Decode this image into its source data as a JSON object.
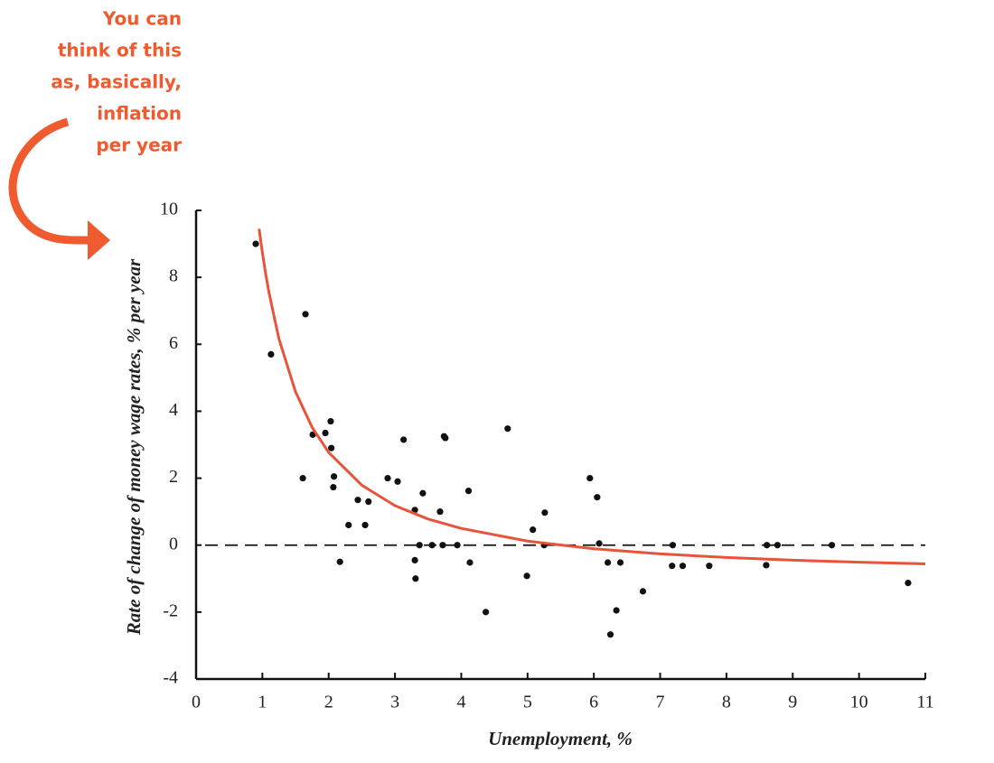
{
  "chart_data": {
    "type": "scatter",
    "annotation": [
      "You can",
      "think of this",
      "as, basically,",
      "inflation",
      "per year"
    ],
    "annotation_color": "#ef5a2f",
    "xlabel": "Unemployment, %",
    "ylabel": "Rate of change of money wage rates, % per year",
    "xlim": [
      0,
      11
    ],
    "ylim": [
      -4,
      10
    ],
    "xticks": [
      0,
      1,
      2,
      3,
      4,
      5,
      6,
      7,
      8,
      9,
      10,
      11
    ],
    "yticks": [
      -4,
      -2,
      0,
      2,
      4,
      6,
      8,
      10
    ],
    "hline": 0,
    "color": "#111111",
    "x": [
      0.9,
      1.65,
      1.13,
      1.76,
      1.61,
      1.95,
      2.03,
      2.04,
      2.08,
      2.07,
      2.17,
      2.3,
      2.44,
      2.55,
      2.6,
      2.89,
      3.04,
      3.13,
      3.3,
      3.3,
      3.31,
      3.37,
      3.42,
      3.56,
      3.68,
      3.72,
      3.74,
      3.76,
      3.94,
      4.11,
      4.13,
      4.37,
      4.7,
      4.99,
      5.08,
      5.25,
      5.26,
      5.94,
      6.05,
      6.08,
      6.21,
      6.25,
      6.34,
      6.4,
      6.74,
      7.19,
      7.18,
      7.34,
      7.74,
      8.61,
      8.6,
      8.77,
      9.59,
      10.74
    ],
    "values": [
      9.0,
      6.9,
      5.7,
      3.3,
      2.0,
      3.35,
      3.7,
      2.9,
      2.05,
      1.73,
      -0.5,
      0.6,
      1.35,
      0.6,
      1.3,
      2.0,
      1.9,
      3.15,
      1.05,
      -0.45,
      -1.0,
      0,
      1.55,
      0,
      1.0,
      0,
      3.25,
      3.2,
      0,
      1.62,
      -0.52,
      -2.0,
      3.48,
      -0.92,
      0.46,
      0,
      0.97,
      2.0,
      1.43,
      0.05,
      -0.52,
      -2.67,
      -1.95,
      -0.52,
      -1.38,
      0,
      -0.62,
      -0.62,
      -0.62,
      0,
      -0.6,
      0,
      0,
      -1.13
    ],
    "curve": {
      "color": "#e8533a",
      "x": [
        0.95,
        1.0,
        1.05,
        1.1,
        1.25,
        1.5,
        1.75,
        2,
        2.5,
        3,
        3.5,
        4,
        5,
        6,
        7,
        8,
        9,
        10,
        11
      ],
      "values": [
        9.45,
        8.74,
        8.1,
        7.54,
        6.16,
        4.58,
        3.52,
        2.77,
        1.79,
        1.18,
        0.78,
        0.5,
        0.12,
        -0.11,
        -0.26,
        -0.37,
        -0.45,
        -0.51,
        -0.56
      ]
    }
  }
}
